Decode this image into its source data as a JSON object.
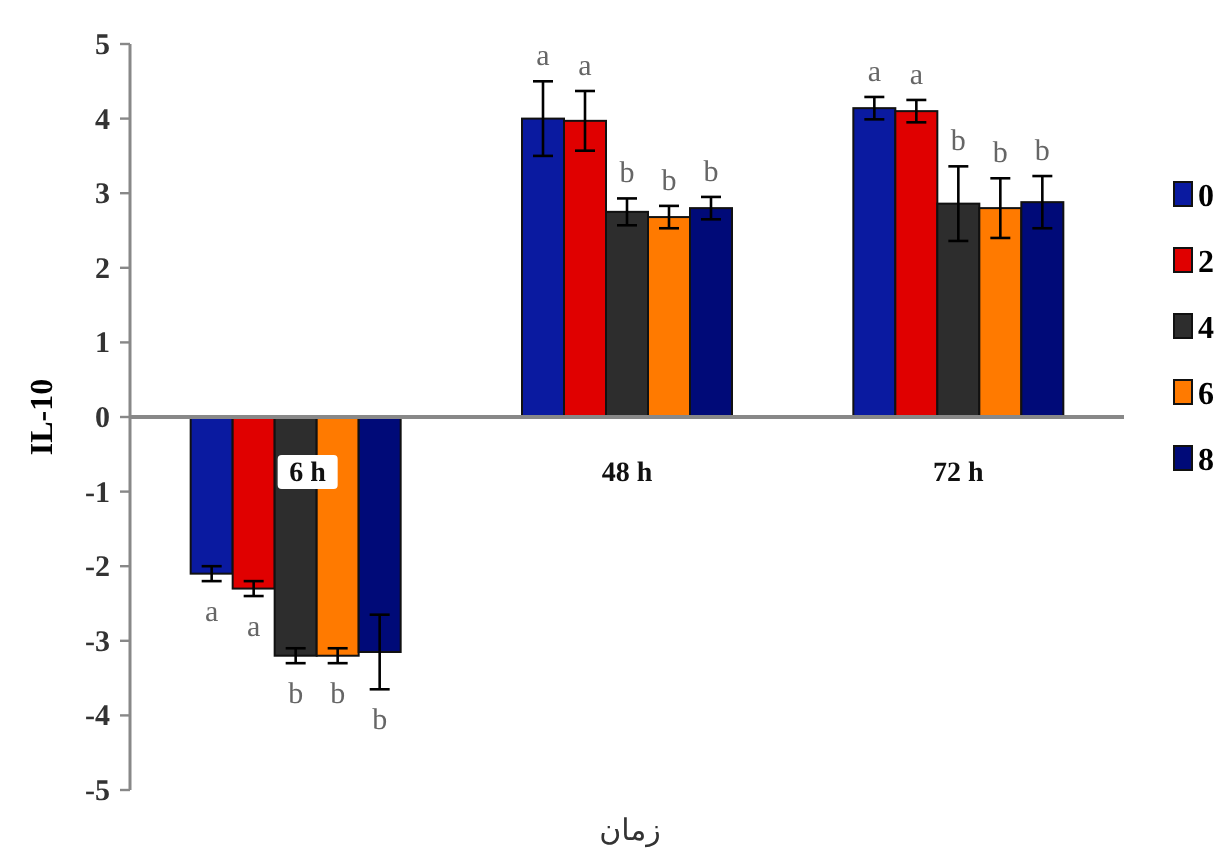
{
  "chart_data": {
    "type": "bar",
    "ylabel": "IL-10",
    "xlabel": "زمان",
    "categories": [
      "6 h",
      "48 h",
      "72 h"
    ],
    "ylim": [
      -5,
      5
    ],
    "yticks": [
      -5,
      -4,
      -3,
      -2,
      -1,
      0,
      1,
      2,
      3,
      4,
      5
    ],
    "grid": false,
    "legend": "right",
    "series": [
      {
        "name": "0",
        "color": "#0a1aa0",
        "values": [
          -2.1,
          4.0,
          4.14
        ],
        "errors": [
          0.1,
          0.5,
          0.15
        ],
        "value_labels": [
          "a",
          "a",
          "a"
        ]
      },
      {
        "name": "2",
        "color": "#e00000",
        "values": [
          -2.3,
          3.97,
          4.1
        ],
        "errors": [
          0.1,
          0.4,
          0.15
        ],
        "value_labels": [
          "a",
          "a",
          "a"
        ]
      },
      {
        "name": "4",
        "color": "#2d2d2d",
        "values": [
          -3.2,
          2.75,
          2.86
        ],
        "errors": [
          0.1,
          0.18,
          0.5
        ],
        "value_labels": [
          "b",
          "b",
          "b"
        ]
      },
      {
        "name": "6",
        "color": "#ff7a00",
        "values": [
          -3.2,
          2.68,
          2.8
        ],
        "errors": [
          0.1,
          0.15,
          0.4
        ],
        "value_labels": [
          "b",
          "b",
          "b"
        ]
      },
      {
        "name": "8",
        "color": "#000a78",
        "values": [
          -3.15,
          2.8,
          2.88
        ],
        "errors": [
          0.5,
          0.15,
          0.35
        ],
        "value_labels": [
          "b",
          "b",
          "b"
        ]
      }
    ]
  }
}
